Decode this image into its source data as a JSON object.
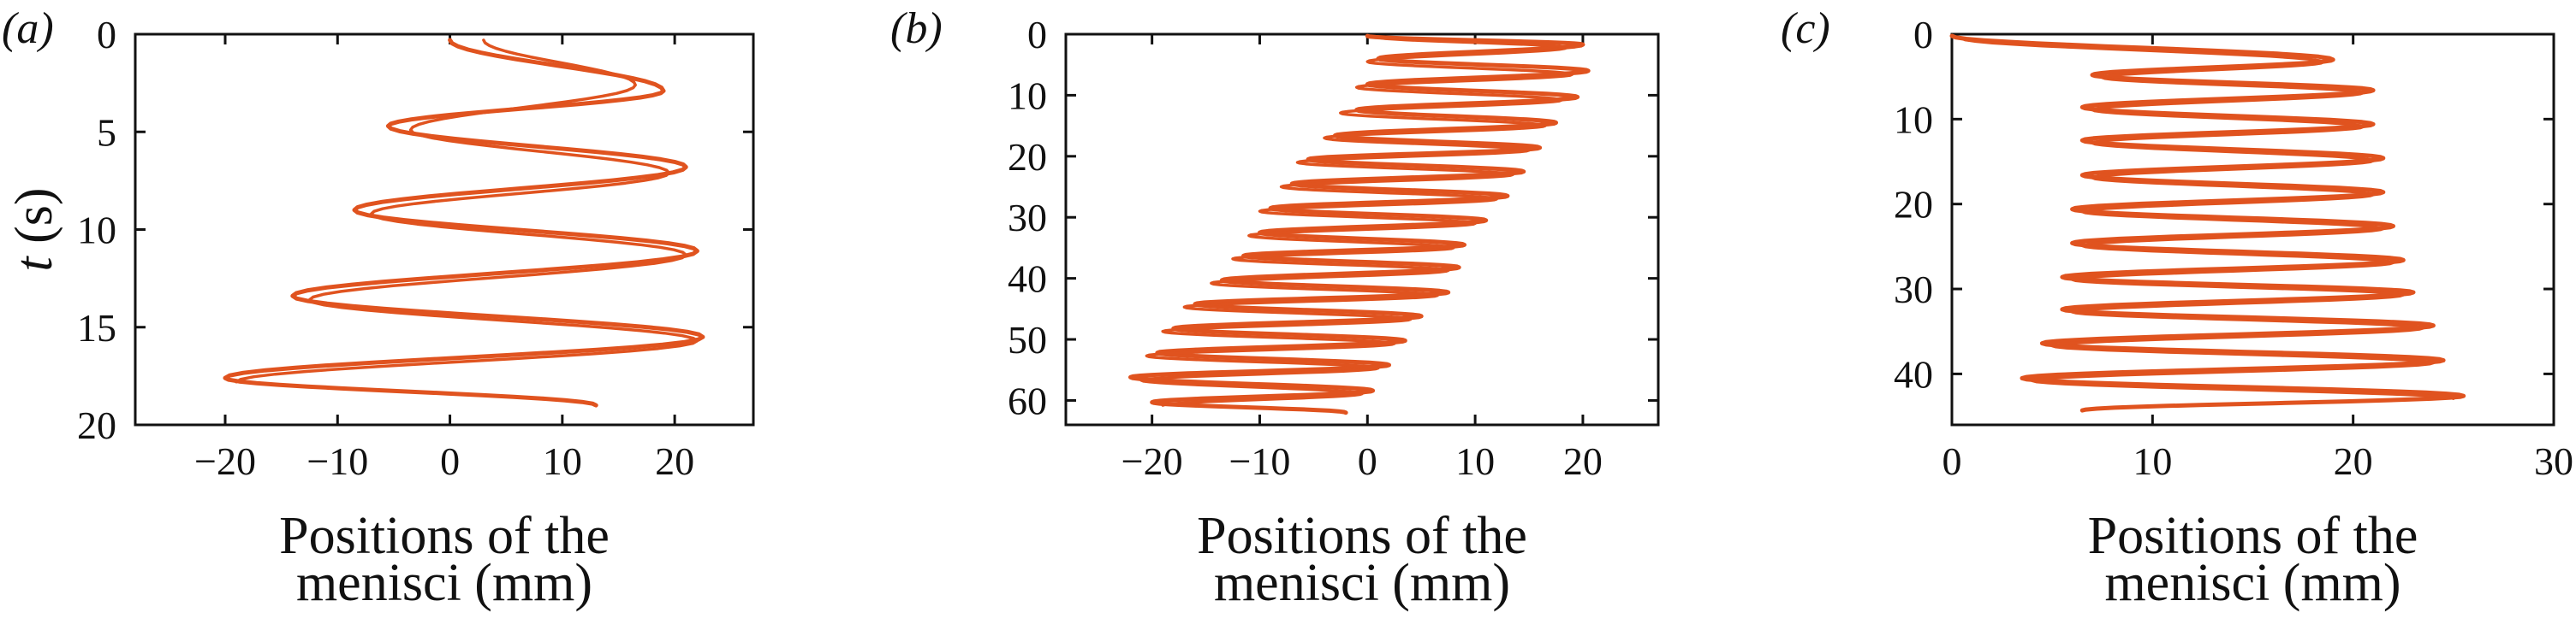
{
  "colors": {
    "curve": "#e0531f",
    "axis": "#111111"
  },
  "chart_data": [
    {
      "type": "line",
      "panel_label": "(a)",
      "ylabel": "t (s)",
      "xlabel_lines": [
        "Positions of the",
        "menisci (mm)"
      ],
      "xlim": [
        -28,
        27
      ],
      "ylim": [
        20,
        0
      ],
      "y_inverted": true,
      "xticks": [
        -20,
        -10,
        0,
        10,
        20
      ],
      "yticks": [
        0,
        5,
        10,
        15,
        20
      ],
      "grid": false,
      "series": [
        {
          "extrema": [
            [
              0.0,
              0.3
            ],
            [
              19.0,
              2.9
            ],
            [
              -5.5,
              4.7
            ],
            [
              21.0,
              6.8
            ],
            [
              -8.5,
              9.0
            ],
            [
              22.0,
              11.1
            ],
            [
              -14.0,
              13.4
            ],
            [
              22.5,
              15.5
            ],
            [
              -20.0,
              17.6
            ],
            [
              13.0,
              19.0
            ]
          ]
        },
        {
          "extrema": [
            [
              3.0,
              0.3
            ],
            [
              16.5,
              2.6
            ],
            [
              -3.5,
              4.9
            ],
            [
              19.5,
              7.1
            ],
            [
              -7.0,
              9.2
            ],
            [
              21.0,
              11.3
            ],
            [
              -12.5,
              13.6
            ],
            [
              22.0,
              15.7
            ],
            [
              -19.0,
              17.8
            ]
          ]
        }
      ]
    },
    {
      "type": "line",
      "panel_label": "(b)",
      "xlabel_lines": [
        "Positions of the",
        "menisci (mm)"
      ],
      "xlim": [
        -28,
        27
      ],
      "ylim": [
        64,
        0
      ],
      "y_inverted": true,
      "xticks": [
        -20,
        -10,
        0,
        10,
        20
      ],
      "yticks": [
        0,
        10,
        20,
        30,
        40,
        50,
        60
      ],
      "grid": false,
      "series": [
        {
          "extrema": [
            [
              0.0,
              0.3
            ],
            [
              20.0,
              1.7
            ],
            [
              1.0,
              4.0
            ],
            [
              20.5,
              6.0
            ],
            [
              0.0,
              8.2
            ],
            [
              19.5,
              10.3
            ],
            [
              -1.0,
              12.4
            ],
            [
              17.5,
              14.5
            ],
            [
              -3.0,
              16.6
            ],
            [
              16.0,
              18.6
            ],
            [
              -5.5,
              20.5
            ],
            [
              14.5,
              22.5
            ],
            [
              -7.0,
              24.5
            ],
            [
              13.0,
              26.5
            ],
            [
              -9.0,
              28.5
            ],
            [
              11.0,
              30.5
            ],
            [
              -10.0,
              32.5
            ],
            [
              9.0,
              34.5
            ],
            [
              -11.5,
              36.3
            ],
            [
              8.5,
              38.2
            ],
            [
              -13.5,
              40.3
            ],
            [
              7.5,
              42.3
            ],
            [
              -16.0,
              44.2
            ],
            [
              5.0,
              46.2
            ],
            [
              -18.0,
              48.2
            ],
            [
              3.5,
              50.2
            ],
            [
              -19.5,
              52.2
            ],
            [
              2.0,
              54.2
            ],
            [
              -22.0,
              56.2
            ],
            [
              0.5,
              58.4
            ],
            [
              -20.0,
              60.3
            ],
            [
              -2.0,
              62.0
            ]
          ]
        },
        {
          "extrema": [
            [
              1.0,
              0.5
            ],
            [
              18.5,
              2.2
            ],
            [
              0.0,
              4.5
            ],
            [
              19.0,
              6.6
            ],
            [
              -1.0,
              8.7
            ],
            [
              18.0,
              10.8
            ],
            [
              -2.5,
              12.9
            ],
            [
              16.5,
              15.0
            ],
            [
              -4.0,
              17.0
            ],
            [
              15.0,
              19.0
            ],
            [
              -6.5,
              21.0
            ],
            [
              13.5,
              23.0
            ],
            [
              -8.0,
              25.0
            ],
            [
              12.0,
              27.0
            ],
            [
              -10.0,
              29.0
            ],
            [
              10.0,
              31.0
            ],
            [
              -11.0,
              33.0
            ],
            [
              8.0,
              35.0
            ],
            [
              -12.5,
              36.8
            ],
            [
              7.5,
              38.7
            ],
            [
              -14.5,
              40.8
            ],
            [
              6.5,
              42.8
            ],
            [
              -17.0,
              44.7
            ],
            [
              4.0,
              46.7
            ],
            [
              -19.0,
              48.7
            ],
            [
              2.5,
              50.7
            ],
            [
              -20.5,
              52.7
            ],
            [
              1.0,
              54.7
            ],
            [
              -21.0,
              56.7
            ],
            [
              -0.5,
              58.9
            ],
            [
              -19.0,
              60.8
            ]
          ]
        }
      ]
    },
    {
      "type": "line",
      "panel_label": "(c)",
      "xlabel_lines": [
        "Positions of the",
        "menisci (mm)"
      ],
      "xlim": [
        0,
        30
      ],
      "ylim": [
        46,
        0
      ],
      "y_inverted": true,
      "xticks": [
        0,
        10,
        20,
        30
      ],
      "yticks": [
        0,
        10,
        20,
        30,
        40
      ],
      "grid": false,
      "series": [
        {
          "extrema": [
            [
              0.0,
              0.2
            ],
            [
              19.0,
              3.0
            ],
            [
              7.0,
              4.8
            ],
            [
              21.0,
              6.6
            ],
            [
              6.5,
              8.6
            ],
            [
              21.0,
              10.6
            ],
            [
              6.5,
              12.5
            ],
            [
              21.5,
              14.6
            ],
            [
              6.5,
              16.6
            ],
            [
              21.5,
              18.6
            ],
            [
              6.0,
              20.6
            ],
            [
              22.0,
              22.6
            ],
            [
              6.0,
              24.6
            ],
            [
              22.5,
              26.6
            ],
            [
              5.5,
              28.6
            ],
            [
              23.0,
              30.4
            ],
            [
              5.5,
              32.4
            ],
            [
              24.0,
              34.3
            ],
            [
              4.5,
              36.4
            ],
            [
              24.5,
              38.4
            ],
            [
              3.5,
              40.5
            ],
            [
              25.5,
              42.6
            ],
            [
              6.5,
              44.3
            ]
          ]
        },
        {
          "extrema": [
            [
              0.5,
              0.5
            ],
            [
              18.5,
              3.3
            ],
            [
              7.5,
              5.1
            ],
            [
              20.5,
              6.9
            ],
            [
              7.0,
              8.9
            ],
            [
              20.5,
              10.9
            ],
            [
              7.0,
              12.8
            ],
            [
              21.0,
              14.9
            ],
            [
              7.0,
              16.9
            ],
            [
              21.0,
              18.9
            ],
            [
              6.5,
              20.9
            ],
            [
              21.5,
              22.9
            ],
            [
              6.5,
              24.9
            ],
            [
              22.0,
              26.9
            ],
            [
              6.0,
              28.9
            ],
            [
              22.5,
              30.7
            ],
            [
              6.0,
              32.7
            ],
            [
              23.5,
              34.6
            ],
            [
              5.0,
              36.7
            ],
            [
              24.0,
              38.7
            ],
            [
              4.0,
              40.8
            ],
            [
              25.0,
              42.9
            ]
          ]
        }
      ]
    }
  ]
}
